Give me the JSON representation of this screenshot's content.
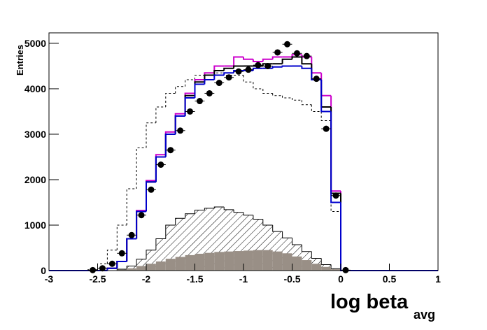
{
  "chart_data": {
    "type": "histogram",
    "y_label": "Entries",
    "x_label": "log beta",
    "x_label_sub": "avg",
    "bins": [
      -3,
      -2.9,
      -2.8,
      -2.7,
      -2.6,
      -2.5,
      -2.4,
      -2.3,
      -2.2,
      -2.1,
      -2,
      -1.9,
      -1.8,
      -1.7,
      -1.6,
      -1.5,
      -1.4,
      -1.3,
      -1.2,
      -1.1,
      -1,
      -0.9,
      -0.8,
      -0.7,
      -0.6,
      -0.5,
      -0.4,
      -0.3,
      -0.2,
      -0.1,
      0,
      0.1,
      0.2,
      0.3,
      0.4,
      0.5,
      0.6,
      0.7,
      0.8,
      0.9,
      1
    ],
    "xlim": [
      -3,
      1
    ],
    "xticks": [
      -3,
      -2.5,
      -2,
      -1.5,
      -1,
      -0.5,
      0,
      0.5,
      1
    ],
    "ylim": [
      0,
      5230
    ],
    "yticks": [
      0,
      1000,
      2000,
      3000,
      4000,
      5000
    ],
    "series": [
      {
        "style": "dashed",
        "color": "#000000",
        "values": [
          0,
          0,
          0,
          0,
          20,
          150,
          450,
          1000,
          1800,
          2700,
          3250,
          3600,
          3900,
          4050,
          4200,
          4300,
          4300,
          4350,
          4300,
          4300,
          4150,
          4000,
          3900,
          3850,
          3800,
          3750,
          3650,
          3500,
          3300,
          1300,
          0,
          0,
          0,
          0,
          0,
          0,
          0,
          0,
          0,
          0
        ]
      },
      {
        "style": "hatched",
        "color": "#000000",
        "values": [
          0,
          0,
          0,
          0,
          0,
          0,
          0,
          30,
          100,
          250,
          450,
          700,
          1000,
          1150,
          1250,
          1330,
          1370,
          1400,
          1340,
          1280,
          1220,
          1130,
          1000,
          860,
          720,
          570,
          420,
          270,
          130,
          40,
          0,
          0,
          0,
          0,
          0,
          0,
          0,
          0,
          0,
          0
        ]
      },
      {
        "style": "filled",
        "color": "#998f86",
        "values": [
          0,
          0,
          0,
          0,
          0,
          0,
          0,
          20,
          50,
          100,
          150,
          200,
          260,
          300,
          340,
          370,
          390,
          410,
          420,
          430,
          440,
          450,
          450,
          420,
          380,
          310,
          230,
          150,
          80,
          30,
          0,
          0,
          0,
          0,
          0,
          0,
          0,
          0,
          0,
          0
        ]
      },
      {
        "style": "line",
        "color": "#cc00cc",
        "values": [
          0,
          0,
          0,
          0,
          0,
          0,
          50,
          200,
          700,
          1320,
          1980,
          2550,
          3050,
          3450,
          3900,
          4200,
          4350,
          4500,
          4500,
          4700,
          4650,
          4600,
          4650,
          4700,
          4700,
          4750,
          4700,
          4350,
          3850,
          1750,
          0,
          0,
          0,
          0,
          0,
          0,
          0,
          0,
          0,
          0
        ]
      },
      {
        "style": "line",
        "color": "#000000",
        "values": [
          0,
          0,
          0,
          0,
          0,
          0,
          50,
          200,
          700,
          1300,
          1950,
          2500,
          3000,
          3400,
          3850,
          4150,
          4300,
          4400,
          4450,
          4500,
          4500,
          4500,
          4550,
          4550,
          4650,
          4700,
          4550,
          4200,
          3600,
          1700,
          0,
          0,
          0,
          0,
          0,
          0,
          0,
          0,
          0,
          0
        ]
      },
      {
        "style": "line",
        "color": "#0000cc",
        "values": [
          0,
          0,
          0,
          0,
          0,
          0,
          50,
          200,
          700,
          1300,
          1950,
          2500,
          3000,
          3400,
          3800,
          4100,
          4200,
          4300,
          4350,
          4400,
          4400,
          4450,
          4450,
          4480,
          4500,
          4500,
          4450,
          4200,
          3500,
          1500,
          0,
          0,
          0,
          0,
          0,
          0,
          0,
          0,
          0,
          0
        ]
      },
      {
        "style": "points",
        "color": "#000000",
        "values": [
          null,
          null,
          null,
          null,
          10,
          50,
          150,
          380,
          780,
          1220,
          1780,
          2330,
          2650,
          3080,
          3500,
          3730,
          3900,
          4130,
          4250,
          4380,
          4420,
          4520,
          4500,
          4800,
          4980,
          4780,
          4720,
          4220,
          3120,
          1650,
          10,
          null,
          null,
          null,
          null,
          null,
          null,
          null,
          null,
          null
        ]
      }
    ]
  }
}
